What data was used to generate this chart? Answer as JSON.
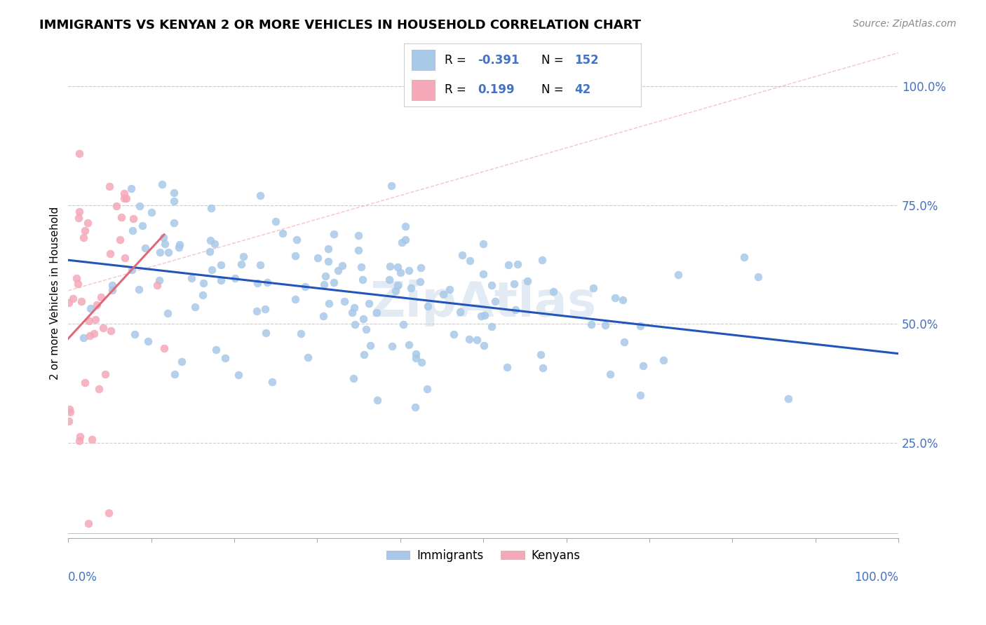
{
  "title": "IMMIGRANTS VS KENYAN 2 OR MORE VEHICLES IN HOUSEHOLD CORRELATION CHART",
  "source": "Source: ZipAtlas.com",
  "ylabel": "2 or more Vehicles in Household",
  "immigrant_color": "#a8c8e8",
  "kenyan_color": "#f4a8b8",
  "immigrant_line_color": "#2255bb",
  "kenyan_line_color": "#e06878",
  "dashed_line_color": "#f4a8b8",
  "legend_text_color": "#4472c4",
  "legend_R1": "-0.391",
  "legend_N1": "152",
  "legend_R2": "0.199",
  "legend_N2": "42",
  "immigrant_R": -0.391,
  "immigrant_N": 152,
  "kenyan_R": 0.199,
  "kenyan_N": 42,
  "watermark": "ZipAtlas",
  "background_color": "#ffffff",
  "grid_color": "#cccccc",
  "ytick_color": "#4472c4",
  "xlim": [
    0.0,
    1.0
  ],
  "ylim_min": 0.05,
  "ylim_max": 1.08
}
